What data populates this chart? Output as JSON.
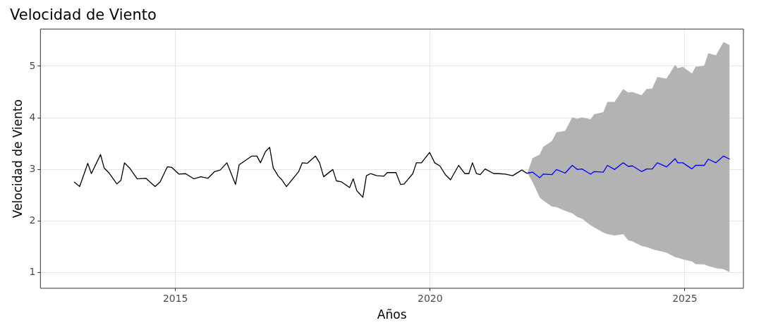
{
  "chart_data": {
    "type": "line",
    "title": "Velocidad de Viento",
    "xlabel": "Años",
    "ylabel": "Velocidad de Viento",
    "xlim": [
      2012.35,
      2026.15
    ],
    "ylim": [
      0.7,
      5.72
    ],
    "xticks": [
      2015,
      2020,
      2025
    ],
    "yticks": [
      1,
      2,
      3,
      4,
      5
    ],
    "grid": true,
    "legend": false,
    "marker": "none",
    "line_style": "solid",
    "series": [
      {
        "color": "#000000",
        "x": [
          2013.01,
          2013.12,
          2013.28,
          2013.35,
          2013.53,
          2013.6,
          2013.7,
          2013.85,
          2013.93,
          2014.0,
          2014.1,
          2014.25,
          2014.42,
          2014.6,
          2014.7,
          2014.84,
          2014.93,
          2015.07,
          2015.2,
          2015.36,
          2015.5,
          2015.64,
          2015.77,
          2015.88,
          2016.01,
          2016.18,
          2016.25,
          2016.5,
          2016.6,
          2016.67,
          2016.77,
          2016.85,
          2016.92,
          2017.02,
          2017.09,
          2017.18,
          2017.42,
          2017.49,
          2017.59,
          2017.75,
          2017.83,
          2017.91,
          2018.09,
          2018.16,
          2018.26,
          2018.42,
          2018.49,
          2018.56,
          2018.68,
          2018.75,
          2018.83,
          2018.95,
          2019.09,
          2019.16,
          2019.33,
          2019.42,
          2019.49,
          2019.66,
          2019.73,
          2019.83,
          2019.99,
          2020.09,
          2020.19,
          2020.3,
          2020.4,
          2020.56,
          2020.68,
          2020.76,
          2020.83,
          2020.91,
          2020.98,
          2021.08,
          2021.25,
          2021.34,
          2021.47,
          2021.62,
          2021.8,
          2021.91
        ],
        "values": [
          2.76,
          2.67,
          3.12,
          2.92,
          3.29,
          3.03,
          2.93,
          2.72,
          2.79,
          3.13,
          3.03,
          2.82,
          2.83,
          2.67,
          2.76,
          3.05,
          3.04,
          2.91,
          2.92,
          2.82,
          2.86,
          2.83,
          2.96,
          2.99,
          3.13,
          2.71,
          3.09,
          3.26,
          3.26,
          3.13,
          3.35,
          3.43,
          3.03,
          2.87,
          2.8,
          2.67,
          2.96,
          3.13,
          3.12,
          3.26,
          3.13,
          2.86,
          3.0,
          2.78,
          2.76,
          2.65,
          2.82,
          2.59,
          2.46,
          2.88,
          2.92,
          2.88,
          2.87,
          2.94,
          2.94,
          2.71,
          2.72,
          2.92,
          3.13,
          3.13,
          3.33,
          3.13,
          3.07,
          2.9,
          2.8,
          3.08,
          2.92,
          2.92,
          3.13,
          2.92,
          2.9,
          3.01,
          2.92,
          2.92,
          2.91,
          2.88,
          2.99,
          2.92
        ]
      },
      {
        "color": "#0000ff",
        "x": [
          2021.91,
          2022.01,
          2022.15,
          2022.22,
          2022.39,
          2022.48,
          2022.65,
          2022.79,
          2022.89,
          2022.98,
          2023.15,
          2023.22,
          2023.4,
          2023.48,
          2023.62,
          2023.79,
          2023.89,
          2023.97,
          2024.15,
          2024.25,
          2024.36,
          2024.46,
          2024.64,
          2024.81,
          2024.86,
          2024.96,
          2025.14,
          2025.21,
          2025.38,
          2025.46,
          2025.61,
          2025.76,
          2025.88
        ],
        "values": [
          2.93,
          2.95,
          2.84,
          2.91,
          2.9,
          3.0,
          2.93,
          3.08,
          3.0,
          3.01,
          2.91,
          2.96,
          2.95,
          3.08,
          3.0,
          3.13,
          3.06,
          3.07,
          2.96,
          3.01,
          3.01,
          3.13,
          3.05,
          3.21,
          3.13,
          3.13,
          3.01,
          3.08,
          3.08,
          3.2,
          3.13,
          3.26,
          3.2
        ],
        "lower": [
          2.93,
          2.76,
          2.46,
          2.4,
          2.28,
          2.27,
          2.2,
          2.15,
          2.08,
          2.05,
          1.92,
          1.88,
          1.78,
          1.75,
          1.72,
          1.75,
          1.63,
          1.61,
          1.52,
          1.5,
          1.46,
          1.43,
          1.39,
          1.3,
          1.29,
          1.26,
          1.22,
          1.17,
          1.16,
          1.13,
          1.09,
          1.07,
          1.01
        ],
        "upper": [
          2.93,
          3.22,
          3.29,
          3.44,
          3.55,
          3.72,
          3.75,
          4.01,
          3.98,
          4.01,
          3.97,
          4.07,
          4.11,
          4.31,
          4.31,
          4.56,
          4.49,
          4.5,
          4.44,
          4.56,
          4.57,
          4.79,
          4.76,
          5.03,
          4.96,
          4.99,
          4.86,
          4.99,
          5.01,
          5.25,
          5.21,
          5.47,
          5.41
        ]
      }
    ]
  }
}
